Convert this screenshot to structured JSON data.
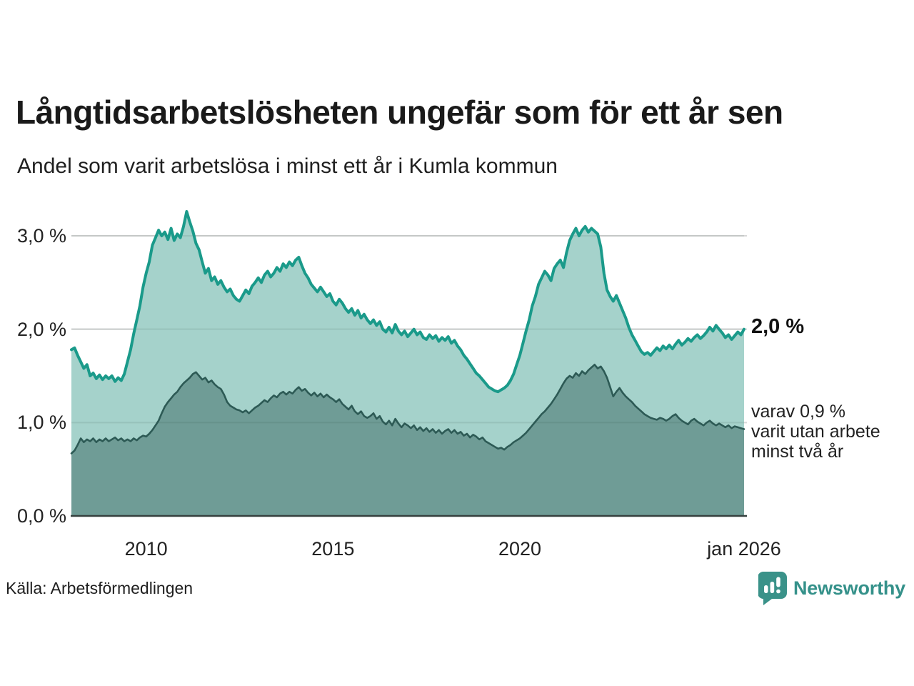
{
  "header": {
    "title": "Långtidsarbetslösheten ungefär som för ett år sen",
    "subtitle": "Andel som varit arbetslösa i minst ett år i Kumla kommun"
  },
  "source": {
    "label": "Källa: Arbetsförmedlingen"
  },
  "branding": {
    "name": "Newsworthy",
    "icon": "newsworthy-speech-bubble-bar-chart-icon",
    "color": "#3a9289",
    "text_color": "#35918a"
  },
  "chart_data": {
    "type": "area",
    "title": "Långtidsarbetslösheten ungefär som för ett år sen",
    "subtitle": "Andel som varit arbetslösa i minst ett år i Kumla kommun",
    "unit": "%",
    "x_start_year": 2008,
    "x_step_months": 1,
    "x_range": [
      2008,
      2026
    ],
    "y_range": [
      0,
      3.45
    ],
    "grid": "horizontal",
    "legend": "none",
    "colors": {
      "gridline": "#d8d8d8",
      "axis_line": "#36413f",
      "upper_line": "#1a9a8a",
      "upper_fill": "#a5d2cb",
      "lower_line": "#2d5a55",
      "lower_fill": "#6f9c96"
    },
    "yticks": [
      {
        "v": 0,
        "label": "0,0 %"
      },
      {
        "v": 1,
        "label": "1,0 %"
      },
      {
        "v": 2,
        "label": "2,0 %"
      },
      {
        "v": 3,
        "label": "3,0 %"
      }
    ],
    "xticks": [
      {
        "t": 2010,
        "label": "2010"
      },
      {
        "t": 2015,
        "label": "2015"
      },
      {
        "t": 2020,
        "label": "2020"
      },
      {
        "t": 2026,
        "label": "jan 2026"
      }
    ],
    "series": [
      {
        "name": "Andel som varit arbetslösa minst ett år",
        "values": [
          1.78,
          1.8,
          1.72,
          1.65,
          1.58,
          1.62,
          1.5,
          1.53,
          1.47,
          1.51,
          1.46,
          1.5,
          1.47,
          1.5,
          1.44,
          1.48,
          1.45,
          1.52,
          1.65,
          1.78,
          1.95,
          2.1,
          2.25,
          2.45,
          2.6,
          2.72,
          2.9,
          2.98,
          3.06,
          3.0,
          3.04,
          2.96,
          3.08,
          2.95,
          3.02,
          2.98,
          3.1,
          3.26,
          3.15,
          3.05,
          2.92,
          2.85,
          2.72,
          2.6,
          2.65,
          2.52,
          2.56,
          2.48,
          2.52,
          2.45,
          2.4,
          2.43,
          2.36,
          2.32,
          2.3,
          2.36,
          2.42,
          2.38,
          2.46,
          2.5,
          2.55,
          2.5,
          2.58,
          2.62,
          2.56,
          2.6,
          2.66,
          2.62,
          2.7,
          2.66,
          2.72,
          2.68,
          2.74,
          2.77,
          2.68,
          2.6,
          2.55,
          2.48,
          2.44,
          2.4,
          2.45,
          2.4,
          2.35,
          2.38,
          2.3,
          2.26,
          2.32,
          2.28,
          2.22,
          2.18,
          2.22,
          2.15,
          2.2,
          2.12,
          2.16,
          2.1,
          2.06,
          2.1,
          2.04,
          2.08,
          2.0,
          1.97,
          2.02,
          1.96,
          2.05,
          1.98,
          1.94,
          1.98,
          1.92,
          1.96,
          2.0,
          1.94,
          1.97,
          1.91,
          1.89,
          1.94,
          1.9,
          1.93,
          1.87,
          1.91,
          1.88,
          1.92,
          1.85,
          1.88,
          1.82,
          1.78,
          1.72,
          1.68,
          1.63,
          1.58,
          1.53,
          1.5,
          1.46,
          1.42,
          1.38,
          1.36,
          1.34,
          1.33,
          1.35,
          1.37,
          1.4,
          1.45,
          1.52,
          1.62,
          1.72,
          1.85,
          1.98,
          2.1,
          2.25,
          2.35,
          2.48,
          2.55,
          2.62,
          2.58,
          2.52,
          2.65,
          2.7,
          2.74,
          2.66,
          2.82,
          2.95,
          3.02,
          3.08,
          3.0,
          3.06,
          3.1,
          3.04,
          3.08,
          3.05,
          3.02,
          2.88,
          2.6,
          2.42,
          2.35,
          2.3,
          2.36,
          2.28,
          2.2,
          2.12,
          2.02,
          1.94,
          1.88,
          1.82,
          1.76,
          1.73,
          1.75,
          1.72,
          1.76,
          1.8,
          1.77,
          1.82,
          1.79,
          1.83,
          1.79,
          1.84,
          1.88,
          1.83,
          1.86,
          1.9,
          1.87,
          1.91,
          1.94,
          1.9,
          1.93,
          1.97,
          2.02,
          1.98,
          2.04,
          2.0,
          1.96,
          1.91,
          1.94,
          1.89,
          1.93,
          1.97,
          1.94,
          2.0
        ]
      },
      {
        "name": "varav utan arbete minst två år",
        "values": [
          0.67,
          0.7,
          0.76,
          0.83,
          0.79,
          0.82,
          0.8,
          0.83,
          0.79,
          0.82,
          0.8,
          0.83,
          0.8,
          0.82,
          0.84,
          0.81,
          0.83,
          0.8,
          0.82,
          0.8,
          0.83,
          0.81,
          0.84,
          0.86,
          0.85,
          0.88,
          0.92,
          0.97,
          1.02,
          1.1,
          1.17,
          1.22,
          1.26,
          1.3,
          1.33,
          1.38,
          1.42,
          1.45,
          1.48,
          1.52,
          1.54,
          1.5,
          1.46,
          1.48,
          1.43,
          1.45,
          1.41,
          1.38,
          1.36,
          1.3,
          1.22,
          1.18,
          1.16,
          1.14,
          1.13,
          1.11,
          1.13,
          1.1,
          1.13,
          1.16,
          1.18,
          1.21,
          1.24,
          1.22,
          1.26,
          1.29,
          1.27,
          1.31,
          1.33,
          1.3,
          1.33,
          1.31,
          1.35,
          1.38,
          1.34,
          1.36,
          1.32,
          1.29,
          1.32,
          1.28,
          1.31,
          1.27,
          1.3,
          1.27,
          1.25,
          1.22,
          1.25,
          1.2,
          1.17,
          1.14,
          1.18,
          1.12,
          1.09,
          1.12,
          1.07,
          1.05,
          1.07,
          1.1,
          1.04,
          1.07,
          1.01,
          0.98,
          1.02,
          0.97,
          1.04,
          0.99,
          0.95,
          0.99,
          0.97,
          0.94,
          0.97,
          0.92,
          0.95,
          0.91,
          0.94,
          0.9,
          0.93,
          0.89,
          0.92,
          0.88,
          0.91,
          0.93,
          0.89,
          0.92,
          0.88,
          0.9,
          0.86,
          0.88,
          0.84,
          0.87,
          0.85,
          0.82,
          0.84,
          0.8,
          0.78,
          0.76,
          0.74,
          0.72,
          0.73,
          0.71,
          0.74,
          0.76,
          0.79,
          0.81,
          0.83,
          0.86,
          0.89,
          0.93,
          0.97,
          1.01,
          1.05,
          1.09,
          1.12,
          1.16,
          1.2,
          1.25,
          1.3,
          1.36,
          1.42,
          1.47,
          1.5,
          1.48,
          1.53,
          1.5,
          1.55,
          1.52,
          1.56,
          1.59,
          1.62,
          1.58,
          1.6,
          1.55,
          1.48,
          1.38,
          1.28,
          1.33,
          1.37,
          1.32,
          1.28,
          1.25,
          1.22,
          1.18,
          1.15,
          1.12,
          1.09,
          1.07,
          1.05,
          1.04,
          1.03,
          1.05,
          1.04,
          1.02,
          1.04,
          1.07,
          1.09,
          1.05,
          1.02,
          1.0,
          0.98,
          1.02,
          1.04,
          1.01,
          0.99,
          0.97,
          1.0,
          1.02,
          0.99,
          0.97,
          0.99,
          0.97,
          0.95,
          0.97,
          0.94,
          0.96,
          0.95,
          0.94,
          0.93
        ]
      }
    ],
    "annotations": {
      "end_value": {
        "text": "2,0 %",
        "anchor_value": 2.0
      },
      "sub_note": {
        "lines": [
          "varav 0,9 %",
          "varit utan arbete",
          "minst två år"
        ],
        "anchor_value": 0.9
      }
    }
  }
}
